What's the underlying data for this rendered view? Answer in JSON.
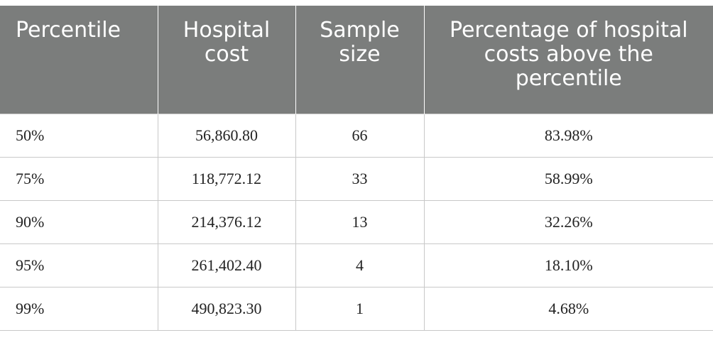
{
  "table": {
    "headers": [
      "Percentile",
      "Hospital cost",
      "Sample size",
      "Percentage of hospital costs above the percentile"
    ],
    "rows": [
      [
        "50%",
        "56,860.80",
        "66",
        "83.98%"
      ],
      [
        "75%",
        "118,772.12",
        "33",
        "58.99%"
      ],
      [
        "90%",
        "214,376.12",
        "13",
        "32.26%"
      ],
      [
        "95%",
        "261,402.40",
        "4",
        "18.10%"
      ],
      [
        "99%",
        "490,823.30",
        "1",
        "4.68%"
      ]
    ]
  },
  "colors": {
    "header_bg": "#7b7d7c",
    "header_text": "#ffffff",
    "grid": "#c8c8c8"
  }
}
